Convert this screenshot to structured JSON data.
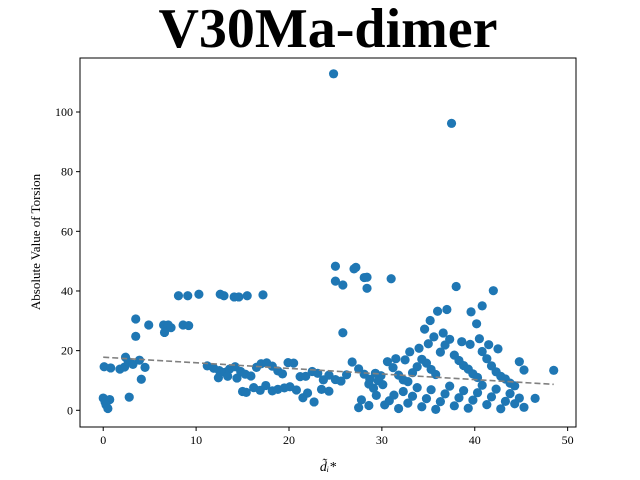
{
  "chart_data": {
    "type": "scatter",
    "title": "V30Ma-dimer",
    "xlabel": "d̃ᵢ*",
    "ylabel": "Absolute Value of Torsion",
    "xlim": [
      -2.5,
      50.9
    ],
    "ylim": [
      -5.6,
      118.1
    ],
    "xticks": [
      0,
      10,
      20,
      30,
      40,
      50
    ],
    "yticks": [
      0,
      20,
      40,
      60,
      80,
      100
    ],
    "grid": false,
    "legend": "none",
    "marker_color": "#1f77b4",
    "trend_color": "#808080",
    "trend_line": {
      "x": [
        0,
        48.5
      ],
      "y": [
        17.8,
        8.7
      ]
    },
    "points": [
      [
        24.8,
        112.8
      ],
      [
        37.5,
        96.2
      ],
      [
        25.0,
        48.3
      ],
      [
        27.2,
        47.9
      ],
      [
        27.0,
        47.4
      ],
      [
        28.1,
        44.5
      ],
      [
        28.4,
        44.6
      ],
      [
        25.0,
        43.3
      ],
      [
        31.0,
        44.1
      ],
      [
        25.8,
        42.0
      ],
      [
        28.4,
        40.9
      ],
      [
        38.0,
        41.5
      ],
      [
        42.0,
        40.1
      ],
      [
        36.0,
        33.2
      ],
      [
        37.0,
        33.8
      ],
      [
        35.2,
        30.1
      ],
      [
        39.6,
        33.0
      ],
      [
        40.8,
        35.0
      ],
      [
        25.8,
        26.0
      ],
      [
        34.6,
        27.2
      ],
      [
        40.2,
        29.0
      ],
      [
        3.5,
        30.6
      ],
      [
        4.9,
        28.6
      ],
      [
        6.5,
        28.6
      ],
      [
        7.0,
        28.6
      ],
      [
        7.3,
        27.7
      ],
      [
        8.6,
        28.6
      ],
      [
        9.2,
        28.4
      ],
      [
        8.1,
        38.4
      ],
      [
        9.1,
        38.4
      ],
      [
        10.3,
        38.9
      ],
      [
        12.6,
        38.9
      ],
      [
        13.0,
        38.4
      ],
      [
        14.1,
        38.0
      ],
      [
        14.6,
        38.0
      ],
      [
        15.5,
        38.4
      ],
      [
        17.2,
        38.7
      ],
      [
        6.6,
        26.1
      ],
      [
        3.5,
        24.8
      ],
      [
        0.1,
        14.6
      ],
      [
        0.8,
        14.2
      ],
      [
        1.8,
        13.8
      ],
      [
        2.3,
        14.5
      ],
      [
        2.4,
        17.8
      ],
      [
        2.7,
        16.3
      ],
      [
        3.2,
        15.4
      ],
      [
        3.9,
        16.8
      ],
      [
        4.5,
        14.4
      ],
      [
        4.1,
        10.4
      ],
      [
        2.8,
        4.4
      ],
      [
        0.0,
        4.1
      ],
      [
        0.2,
        2.8
      ],
      [
        0.7,
        3.6
      ],
      [
        0.3,
        1.8
      ],
      [
        0.5,
        0.6
      ],
      [
        11.2,
        14.9
      ],
      [
        11.9,
        14.1
      ],
      [
        12.5,
        13.3
      ],
      [
        13.1,
        12.7
      ],
      [
        13.6,
        13.8
      ],
      [
        14.2,
        14.6
      ],
      [
        14.8,
        13.0
      ],
      [
        15.3,
        12.1
      ],
      [
        15.9,
        11.5
      ],
      [
        16.5,
        14.4
      ],
      [
        17.0,
        15.6
      ],
      [
        17.6,
        15.9
      ],
      [
        18.2,
        14.8
      ],
      [
        18.8,
        13.2
      ],
      [
        19.3,
        12.2
      ],
      [
        19.9,
        16.0
      ],
      [
        20.5,
        15.8
      ],
      [
        21.2,
        11.3
      ],
      [
        21.8,
        11.4
      ],
      [
        22.5,
        13.0
      ],
      [
        23.1,
        12.4
      ],
      [
        23.7,
        10.2
      ],
      [
        24.3,
        11.8
      ],
      [
        25.0,
        10.3
      ],
      [
        25.6,
        9.8
      ],
      [
        26.2,
        11.9
      ],
      [
        26.8,
        16.2
      ],
      [
        27.5,
        13.9
      ],
      [
        28.1,
        12.1
      ],
      [
        28.7,
        10.4
      ],
      [
        29.3,
        12.4
      ],
      [
        29.9,
        11.6
      ],
      [
        12.4,
        10.9
      ],
      [
        13.4,
        11.4
      ],
      [
        14.4,
        10.8
      ],
      [
        15.0,
        6.3
      ],
      [
        15.4,
        6.0
      ],
      [
        16.2,
        7.6
      ],
      [
        16.9,
        6.7
      ],
      [
        17.5,
        8.3
      ],
      [
        18.2,
        6.5
      ],
      [
        18.8,
        7.0
      ],
      [
        19.5,
        7.5
      ],
      [
        20.1,
        7.9
      ],
      [
        20.8,
        6.8
      ],
      [
        21.5,
        4.2
      ],
      [
        22.0,
        5.8
      ],
      [
        22.7,
        2.8
      ],
      [
        23.5,
        7.0
      ],
      [
        24.3,
        6.4
      ],
      [
        28.6,
        8.8
      ],
      [
        29.1,
        7.4
      ],
      [
        29.6,
        9.9
      ],
      [
        30.1,
        8.6
      ],
      [
        30.6,
        16.3
      ],
      [
        31.2,
        14.3
      ],
      [
        31.8,
        11.8
      ],
      [
        32.3,
        10.2
      ],
      [
        32.8,
        9.6
      ],
      [
        33.3,
        12.6
      ],
      [
        33.8,
        14.6
      ],
      [
        34.3,
        17.1
      ],
      [
        34.8,
        15.8
      ],
      [
        35.3,
        13.7
      ],
      [
        35.8,
        12.0
      ],
      [
        36.3,
        19.5
      ],
      [
        36.8,
        21.9
      ],
      [
        37.3,
        23.8
      ],
      [
        37.8,
        18.5
      ],
      [
        38.3,
        16.7
      ],
      [
        38.8,
        15.0
      ],
      [
        39.3,
        13.8
      ],
      [
        39.8,
        12.2
      ],
      [
        40.3,
        11.0
      ],
      [
        40.8,
        19.7
      ],
      [
        41.3,
        17.3
      ],
      [
        41.8,
        14.9
      ],
      [
        42.3,
        12.9
      ],
      [
        42.8,
        11.4
      ],
      [
        43.3,
        10.5
      ],
      [
        43.8,
        9.1
      ],
      [
        44.3,
        8.2
      ],
      [
        44.8,
        16.3
      ],
      [
        45.3,
        13.5
      ],
      [
        48.5,
        13.4
      ],
      [
        30.3,
        1.8
      ],
      [
        30.8,
        3.2
      ],
      [
        31.3,
        5.1
      ],
      [
        31.8,
        0.6
      ],
      [
        32.3,
        6.3
      ],
      [
        32.8,
        2.4
      ],
      [
        33.3,
        4.7
      ],
      [
        33.8,
        7.6
      ],
      [
        34.3,
        1.2
      ],
      [
        34.8,
        3.9
      ],
      [
        35.3,
        6.9
      ],
      [
        35.8,
        0.3
      ],
      [
        36.3,
        2.9
      ],
      [
        36.8,
        5.5
      ],
      [
        37.3,
        8.1
      ],
      [
        37.8,
        1.5
      ],
      [
        38.3,
        4.2
      ],
      [
        38.8,
        6.6
      ],
      [
        39.3,
        0.7
      ],
      [
        39.8,
        3.4
      ],
      [
        40.3,
        5.9
      ],
      [
        40.8,
        8.4
      ],
      [
        41.3,
        1.9
      ],
      [
        41.8,
        4.5
      ],
      [
        42.3,
        7.1
      ],
      [
        42.8,
        0.5
      ],
      [
        43.3,
        3.0
      ],
      [
        43.8,
        5.6
      ],
      [
        44.3,
        2.2
      ],
      [
        44.8,
        4.1
      ],
      [
        45.3,
        1.0
      ],
      [
        46.5,
        4.0
      ],
      [
        27.5,
        0.9
      ],
      [
        27.8,
        3.5
      ],
      [
        28.6,
        1.6
      ],
      [
        29.4,
        5.0
      ],
      [
        33.0,
        19.6
      ],
      [
        34.0,
        20.8
      ],
      [
        35.0,
        22.3
      ],
      [
        35.6,
        24.6
      ],
      [
        36.6,
        25.9
      ],
      [
        38.6,
        23.0
      ],
      [
        39.5,
        22.1
      ],
      [
        40.5,
        24.0
      ],
      [
        41.5,
        22.0
      ],
      [
        42.5,
        20.6
      ],
      [
        31.5,
        17.3
      ],
      [
        32.5,
        16.9
      ]
    ]
  }
}
